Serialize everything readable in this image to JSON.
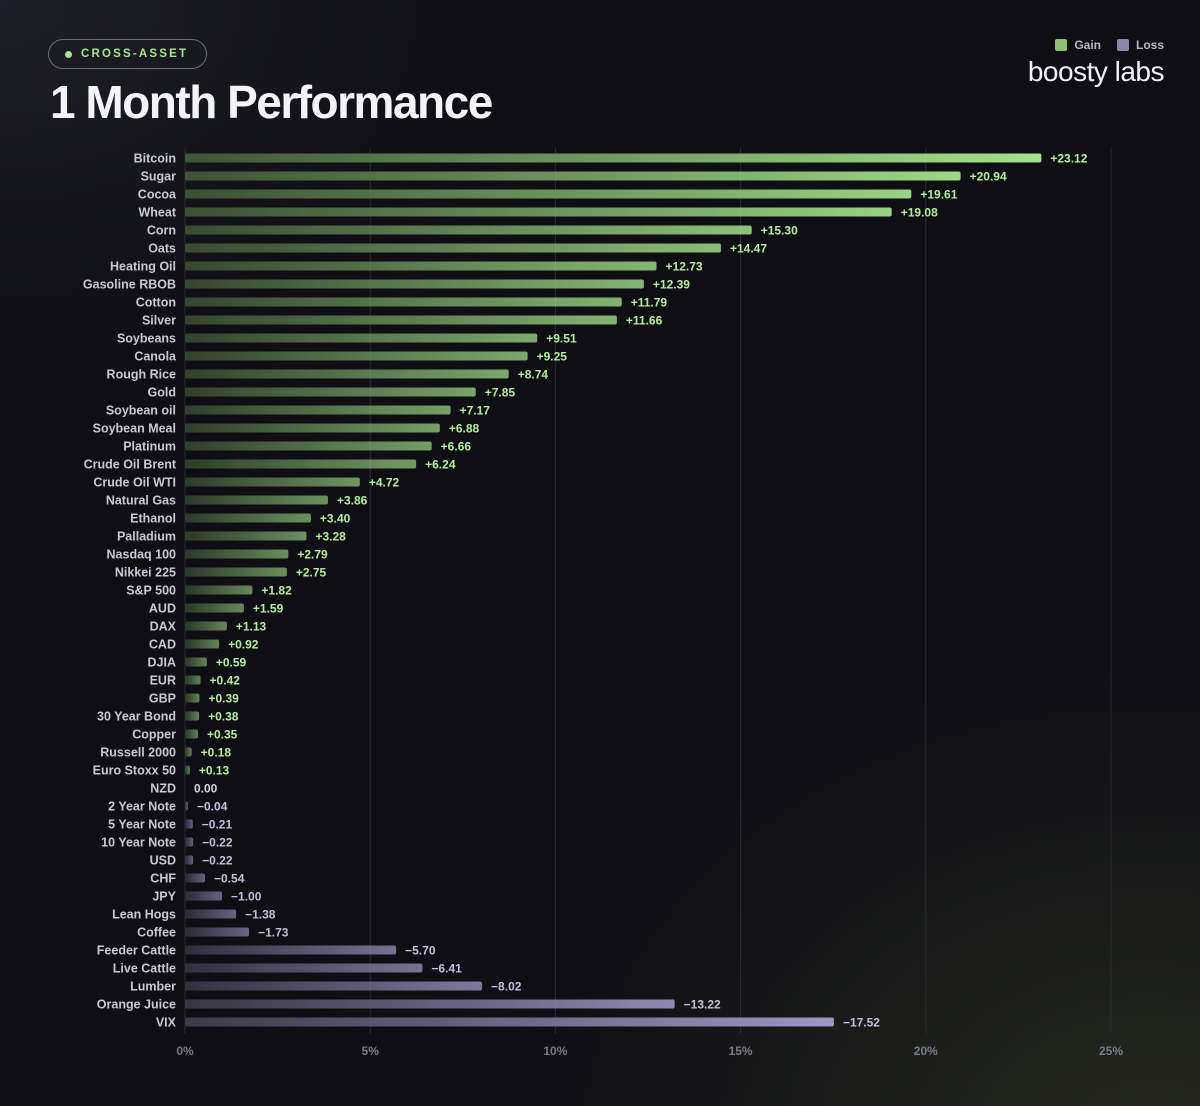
{
  "header": {
    "badge": "CROSS-ASSET",
    "title": "1 Month Performance",
    "brand": "boosty labs"
  },
  "legend": [
    {
      "label": "Gain",
      "color": "#8fc07a"
    },
    {
      "label": "Loss",
      "color": "#8d86a8"
    }
  ],
  "colors": {
    "gain_strong": "#a3e28b",
    "gain_weak": "#3f5536",
    "loss_strong": "#9d95c2",
    "loss_weak": "#3c3a4b",
    "gain_text": "#b4f09a",
    "loss_text": "#c4bfdc",
    "zero_text": "#d8d8e0"
  },
  "chart_data": {
    "type": "bar",
    "orientation": "horizontal",
    "categories": [
      "Bitcoin",
      "Sugar",
      "Cocoa",
      "Wheat",
      "Corn",
      "Oats",
      "Heating Oil",
      "Gasoline RBOB",
      "Cotton",
      "Silver",
      "Soybeans",
      "Canola",
      "Rough Rice",
      "Gold",
      "Soybean oil",
      "Soybean Meal",
      "Platinum",
      "Crude Oil Brent",
      "Crude Oil WTI",
      "Natural Gas",
      "Ethanol",
      "Palladium",
      "Nasdaq 100",
      "Nikkei 225",
      "S&P 500",
      "AUD",
      "DAX",
      "CAD",
      "DJIA",
      "EUR",
      "GBP",
      "30 Year Bond",
      "Copper",
      "Russell 2000",
      "Euro Stoxx 50",
      "NZD",
      "2 Year Note",
      "5 Year Note",
      "10 Year Note",
      "USD",
      "CHF",
      "JPY",
      "Lean Hogs",
      "Coffee",
      "Feeder Cattle",
      "Live Cattle",
      "Lumber",
      "Orange Juice",
      "VIX"
    ],
    "values": [
      23.12,
      20.94,
      19.61,
      19.08,
      15.3,
      14.47,
      12.73,
      12.39,
      11.79,
      11.66,
      9.51,
      9.25,
      8.74,
      7.85,
      7.17,
      6.88,
      6.66,
      6.24,
      4.72,
      3.86,
      3.4,
      3.28,
      2.79,
      2.75,
      1.82,
      1.59,
      1.13,
      0.92,
      0.59,
      0.42,
      0.39,
      0.38,
      0.35,
      0.18,
      0.13,
      0.0,
      -0.04,
      -0.21,
      -0.22,
      -0.22,
      -0.54,
      -1.0,
      -1.38,
      -1.73,
      -5.7,
      -6.41,
      -8.02,
      -13.22,
      -17.52
    ],
    "value_labels": [
      "+23.12",
      "+20.94",
      "+19.61",
      "+19.08",
      "+15.30",
      "+14.47",
      "+12.73",
      "+12.39",
      "+11.79",
      "+11.66",
      "+9.51",
      "+9.25",
      "+8.74",
      "+7.85",
      "+7.17",
      "+6.88",
      "+6.66",
      "+6.24",
      "+4.72",
      "+3.86",
      "+3.40",
      "+3.28",
      "+2.79",
      "+2.75",
      "+1.82",
      "+1.59",
      "+1.13",
      "+0.92",
      "+0.59",
      "+0.42",
      "+0.39",
      "+0.38",
      "+0.35",
      "+0.18",
      "+0.13",
      "0.00",
      "−0.04",
      "−0.21",
      "−0.22",
      "−0.22",
      "−0.54",
      "−1.00",
      "−1.38",
      "−1.73",
      "−5.70",
      "−6.41",
      "−8.02",
      "−13.22",
      "−17.52"
    ],
    "xlim": [
      0,
      25
    ],
    "xticks": [
      0,
      5,
      10,
      15,
      20,
      25
    ],
    "xtick_labels": [
      "0%",
      "5%",
      "10%",
      "15%",
      "20%",
      "25%"
    ],
    "bar_length": "absolute value",
    "grid": true,
    "legend_position": "top-right"
  }
}
